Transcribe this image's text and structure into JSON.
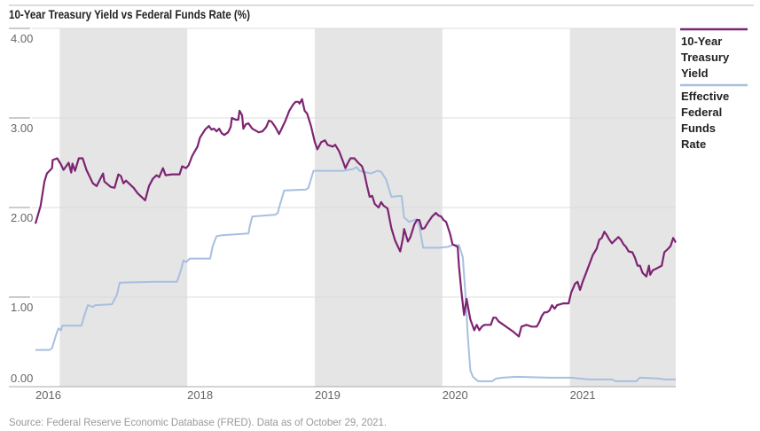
{
  "chart_data": {
    "type": "line",
    "title": "10-Year Treasury Yield vs Federal Funds Rate (%)",
    "source": "Source: Federal Reserve Economic Database (FRED). Data as of October 29, 2021.",
    "xlabel": "",
    "ylabel": "",
    "xlim": [
      2016.81,
      2021.83
    ],
    "ylim": [
      0,
      4
    ],
    "y_ticks": [
      {
        "value": 0,
        "label": "0.00"
      },
      {
        "value": 1,
        "label": "1.00"
      },
      {
        "value": 2,
        "label": "2.00"
      },
      {
        "value": 3,
        "label": "3.00"
      },
      {
        "value": 4,
        "label": "4.00"
      }
    ],
    "x_ticks": [
      {
        "value": 2016.81,
        "label": "2016"
      },
      {
        "value": 2018,
        "label": "2018"
      },
      {
        "value": 2019,
        "label": "2019"
      },
      {
        "value": 2020,
        "label": "2020"
      },
      {
        "value": 2021,
        "label": "2021"
      }
    ],
    "shaded_periods": [
      [
        2017,
        2018
      ],
      [
        2019,
        2020
      ],
      [
        2021,
        2021.83
      ]
    ],
    "grid": true,
    "legend_position": "right",
    "series": [
      {
        "name": "10-Year Treasury Yield",
        "legend_lines": [
          "10-Year",
          "Treasury",
          "Yield"
        ],
        "color": "#7d2472",
        "points": [
          [
            2016.81,
            1.82
          ],
          [
            2016.85,
            2.02
          ],
          [
            2016.88,
            2.29
          ],
          [
            2016.9,
            2.38
          ],
          [
            2016.94,
            2.44
          ],
          [
            2016.945,
            2.53
          ],
          [
            2016.98,
            2.55
          ],
          [
            2017.01,
            2.48
          ],
          [
            2017.03,
            2.42
          ],
          [
            2017.07,
            2.5
          ],
          [
            2017.09,
            2.39
          ],
          [
            2017.1,
            2.49
          ],
          [
            2017.12,
            2.41
          ],
          [
            2017.15,
            2.55
          ],
          [
            2017.18,
            2.55
          ],
          [
            2017.21,
            2.42
          ],
          [
            2017.26,
            2.27
          ],
          [
            2017.29,
            2.24
          ],
          [
            2017.34,
            2.38
          ],
          [
            2017.35,
            2.29
          ],
          [
            2017.4,
            2.23
          ],
          [
            2017.43,
            2.22
          ],
          [
            2017.46,
            2.37
          ],
          [
            2017.48,
            2.35
          ],
          [
            2017.5,
            2.27
          ],
          [
            2017.52,
            2.3
          ],
          [
            2017.58,
            2.22
          ],
          [
            2017.61,
            2.16
          ],
          [
            2017.67,
            2.08
          ],
          [
            2017.7,
            2.24
          ],
          [
            2017.73,
            2.32
          ],
          [
            2017.76,
            2.36
          ],
          [
            2017.78,
            2.34
          ],
          [
            2017.81,
            2.44
          ],
          [
            2017.83,
            2.36
          ],
          [
            2017.88,
            2.37
          ],
          [
            2017.94,
            2.37
          ],
          [
            2017.96,
            2.46
          ],
          [
            2017.99,
            2.44
          ],
          [
            2018.01,
            2.47
          ],
          [
            2018.04,
            2.58
          ],
          [
            2018.08,
            2.68
          ],
          [
            2018.1,
            2.78
          ],
          [
            2018.14,
            2.87
          ],
          [
            2018.17,
            2.91
          ],
          [
            2018.19,
            2.87
          ],
          [
            2018.21,
            2.88
          ],
          [
            2018.23,
            2.85
          ],
          [
            2018.25,
            2.88
          ],
          [
            2018.27,
            2.83
          ],
          [
            2018.29,
            2.81
          ],
          [
            2018.32,
            2.84
          ],
          [
            2018.34,
            2.9
          ],
          [
            2018.35,
            3.0
          ],
          [
            2018.38,
            2.98
          ],
          [
            2018.4,
            2.98
          ],
          [
            2018.41,
            3.08
          ],
          [
            2018.43,
            3.03
          ],
          [
            2018.44,
            2.88
          ],
          [
            2018.46,
            2.93
          ],
          [
            2018.48,
            2.94
          ],
          [
            2018.51,
            2.88
          ],
          [
            2018.56,
            2.84
          ],
          [
            2018.59,
            2.85
          ],
          [
            2018.62,
            2.9
          ],
          [
            2018.64,
            2.97
          ],
          [
            2018.66,
            2.96
          ],
          [
            2018.69,
            2.9
          ],
          [
            2018.72,
            2.82
          ],
          [
            2018.74,
            2.88
          ],
          [
            2018.77,
            2.97
          ],
          [
            2018.8,
            3.08
          ],
          [
            2018.83,
            3.15
          ],
          [
            2018.85,
            3.18
          ],
          [
            2018.87,
            3.18
          ],
          [
            2018.88,
            3.16
          ],
          [
            2018.9,
            3.21
          ],
          [
            2018.92,
            3.08
          ],
          [
            2018.94,
            3.05
          ],
          [
            2018.97,
            2.91
          ],
          [
            2019.0,
            2.73
          ],
          [
            2019.02,
            2.65
          ],
          [
            2019.05,
            2.73
          ],
          [
            2019.08,
            2.75
          ],
          [
            2019.1,
            2.7
          ],
          [
            2019.14,
            2.68
          ],
          [
            2019.16,
            2.7
          ],
          [
            2019.19,
            2.63
          ],
          [
            2019.22,
            2.52
          ],
          [
            2019.24,
            2.44
          ],
          [
            2019.26,
            2.5
          ],
          [
            2019.28,
            2.55
          ],
          [
            2019.31,
            2.55
          ],
          [
            2019.34,
            2.5
          ],
          [
            2019.37,
            2.46
          ],
          [
            2019.39,
            2.37
          ],
          [
            2019.41,
            2.24
          ],
          [
            2019.43,
            2.12
          ],
          [
            2019.45,
            2.13
          ],
          [
            2019.47,
            2.04
          ],
          [
            2019.5,
            2.0
          ],
          [
            2019.52,
            2.06
          ],
          [
            2019.54,
            2.02
          ],
          [
            2019.57,
            1.99
          ],
          [
            2019.6,
            1.77
          ],
          [
            2019.63,
            1.63
          ],
          [
            2019.64,
            1.6
          ],
          [
            2019.67,
            1.51
          ],
          [
            2019.69,
            1.65
          ],
          [
            2019.7,
            1.76
          ],
          [
            2019.73,
            1.62
          ],
          [
            2019.75,
            1.67
          ],
          [
            2019.78,
            1.81
          ],
          [
            2019.8,
            1.86
          ],
          [
            2019.82,
            1.86
          ],
          [
            2019.84,
            1.76
          ],
          [
            2019.86,
            1.77
          ],
          [
            2019.89,
            1.84
          ],
          [
            2019.92,
            1.9
          ],
          [
            2019.95,
            1.94
          ],
          [
            2019.97,
            1.91
          ],
          [
            2019.99,
            1.9
          ],
          [
            2020.01,
            1.86
          ],
          [
            2020.03,
            1.84
          ],
          [
            2020.06,
            1.71
          ],
          [
            2020.08,
            1.59
          ],
          [
            2020.12,
            1.56
          ],
          [
            2020.13,
            1.35
          ],
          [
            2020.15,
            1.05
          ],
          [
            2020.17,
            0.8
          ],
          [
            2020.19,
            0.98
          ],
          [
            2020.22,
            0.75
          ],
          [
            2020.25,
            0.63
          ],
          [
            2020.27,
            0.69
          ],
          [
            2020.29,
            0.63
          ],
          [
            2020.31,
            0.67
          ],
          [
            2020.33,
            0.69
          ],
          [
            2020.38,
            0.69
          ],
          [
            2020.4,
            0.77
          ],
          [
            2020.42,
            0.77
          ],
          [
            2020.44,
            0.73
          ],
          [
            2020.47,
            0.7
          ],
          [
            2020.53,
            0.64
          ],
          [
            2020.56,
            0.61
          ],
          [
            2020.6,
            0.56
          ],
          [
            2020.62,
            0.67
          ],
          [
            2020.66,
            0.69
          ],
          [
            2020.7,
            0.67
          ],
          [
            2020.74,
            0.67
          ],
          [
            2020.76,
            0.72
          ],
          [
            2020.78,
            0.79
          ],
          [
            2020.8,
            0.83
          ],
          [
            2020.82,
            0.83
          ],
          [
            2020.84,
            0.85
          ],
          [
            2020.86,
            0.91
          ],
          [
            2020.88,
            0.87
          ],
          [
            2020.9,
            0.91
          ],
          [
            2020.95,
            0.93
          ],
          [
            2020.99,
            0.93
          ],
          [
            2021.01,
            1.05
          ],
          [
            2021.04,
            1.15
          ],
          [
            2021.06,
            1.17
          ],
          [
            2021.08,
            1.08
          ],
          [
            2021.1,
            1.17
          ],
          [
            2021.13,
            1.28
          ],
          [
            2021.18,
            1.47
          ],
          [
            2021.21,
            1.54
          ],
          [
            2021.23,
            1.64
          ],
          [
            2021.25,
            1.66
          ],
          [
            2021.27,
            1.73
          ],
          [
            2021.29,
            1.69
          ],
          [
            2021.31,
            1.64
          ],
          [
            2021.33,
            1.6
          ],
          [
            2021.35,
            1.63
          ],
          [
            2021.38,
            1.67
          ],
          [
            2021.4,
            1.64
          ],
          [
            2021.42,
            1.59
          ],
          [
            2021.44,
            1.56
          ],
          [
            2021.46,
            1.51
          ],
          [
            2021.49,
            1.5
          ],
          [
            2021.51,
            1.44
          ],
          [
            2021.53,
            1.35
          ],
          [
            2021.55,
            1.35
          ],
          [
            2021.57,
            1.27
          ],
          [
            2021.6,
            1.23
          ],
          [
            2021.62,
            1.35
          ],
          [
            2021.63,
            1.25
          ],
          [
            2021.65,
            1.3
          ],
          [
            2021.68,
            1.32
          ],
          [
            2021.72,
            1.35
          ],
          [
            2021.74,
            1.5
          ],
          [
            2021.77,
            1.54
          ],
          [
            2021.79,
            1.57
          ],
          [
            2021.81,
            1.66
          ],
          [
            2021.83,
            1.61
          ]
        ]
      },
      {
        "name": "Effective Federal Funds Rate",
        "legend_lines": [
          "Effective",
          "Federal",
          "Funds",
          "Rate"
        ],
        "color": "#a7bfe0",
        "points": [
          [
            2016.81,
            0.41
          ],
          [
            2016.92,
            0.41
          ],
          [
            2016.94,
            0.43
          ],
          [
            2016.97,
            0.57
          ],
          [
            2016.99,
            0.65
          ],
          [
            2017.01,
            0.63
          ],
          [
            2017.02,
            0.68
          ],
          [
            2017.17,
            0.68
          ],
          [
            2017.19,
            0.78
          ],
          [
            2017.22,
            0.91
          ],
          [
            2017.26,
            0.89
          ],
          [
            2017.28,
            0.91
          ],
          [
            2017.41,
            0.92
          ],
          [
            2017.45,
            1.03
          ],
          [
            2017.47,
            1.16
          ],
          [
            2017.74,
            1.17
          ],
          [
            2017.92,
            1.17
          ],
          [
            2017.95,
            1.3
          ],
          [
            2017.97,
            1.41
          ],
          [
            2017.99,
            1.39
          ],
          [
            2018.02,
            1.43
          ],
          [
            2018.18,
            1.43
          ],
          [
            2018.2,
            1.57
          ],
          [
            2018.23,
            1.68
          ],
          [
            2018.27,
            1.69
          ],
          [
            2018.48,
            1.71
          ],
          [
            2018.49,
            1.79
          ],
          [
            2018.51,
            1.9
          ],
          [
            2018.69,
            1.92
          ],
          [
            2018.71,
            1.94
          ],
          [
            2018.72,
            2.0
          ],
          [
            2018.76,
            2.19
          ],
          [
            2018.93,
            2.2
          ],
          [
            2018.95,
            2.22
          ],
          [
            2018.99,
            2.41
          ],
          [
            2019.22,
            2.41
          ],
          [
            2019.3,
            2.43
          ],
          [
            2019.33,
            2.45
          ],
          [
            2019.35,
            2.41
          ],
          [
            2019.44,
            2.38
          ],
          [
            2019.49,
            2.41
          ],
          [
            2019.52,
            2.4
          ],
          [
            2019.56,
            2.31
          ],
          [
            2019.6,
            2.12
          ],
          [
            2019.68,
            2.13
          ],
          [
            2019.7,
            1.89
          ],
          [
            2019.74,
            1.84
          ],
          [
            2019.8,
            1.87
          ],
          [
            2019.82,
            1.79
          ],
          [
            2019.85,
            1.55
          ],
          [
            2019.97,
            1.55
          ],
          [
            2020.04,
            1.56
          ],
          [
            2020.08,
            1.58
          ],
          [
            2020.13,
            1.58
          ],
          [
            2020.16,
            1.45
          ],
          [
            2020.18,
            1.05
          ],
          [
            2020.2,
            0.55
          ],
          [
            2020.22,
            0.18
          ],
          [
            2020.24,
            0.11
          ],
          [
            2020.28,
            0.06
          ],
          [
            2020.39,
            0.06
          ],
          [
            2020.42,
            0.09
          ],
          [
            2020.47,
            0.1
          ],
          [
            2020.58,
            0.11
          ],
          [
            2020.84,
            0.1
          ],
          [
            2021.01,
            0.1
          ],
          [
            2021.15,
            0.08
          ],
          [
            2021.33,
            0.08
          ],
          [
            2021.36,
            0.06
          ],
          [
            2021.52,
            0.06
          ],
          [
            2021.55,
            0.1
          ],
          [
            2021.7,
            0.09
          ],
          [
            2021.74,
            0.08
          ],
          [
            2021.83,
            0.08
          ]
        ]
      }
    ]
  }
}
